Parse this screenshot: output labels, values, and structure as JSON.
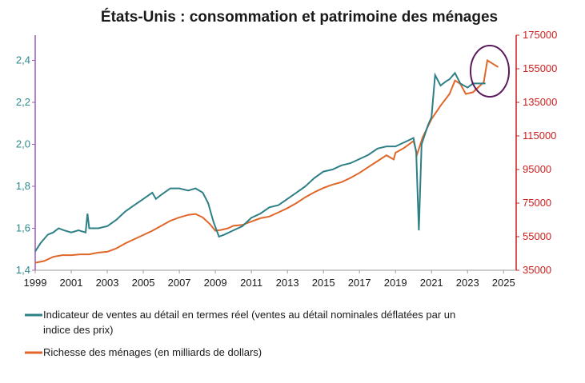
{
  "chart_data": {
    "type": "line",
    "title": "États-Unis : consommation et patrimoine des ménages",
    "x_ticks": [
      "1999",
      "2001",
      "2003",
      "2005",
      "2007",
      "2009",
      "2011",
      "2013",
      "2015",
      "2017",
      "2019",
      "2021",
      "2023",
      "2025"
    ],
    "xlim": [
      1999,
      2025.7
    ],
    "y_left": {
      "ticks": [
        "1,4",
        "1,6",
        "1,8",
        "2,0",
        "2,2",
        "2,4"
      ],
      "lim": [
        1.4,
        2.52
      ]
    },
    "y_right": {
      "ticks": [
        "35000",
        "55000",
        "75000",
        "95000",
        "115000",
        "135000",
        "155000",
        "175000"
      ],
      "lim": [
        35000,
        175000
      ]
    },
    "grid": false,
    "legend_position": "bottom",
    "colors": {
      "retail": "#2e7f86",
      "wealth": "#e0662a",
      "left_axis": "#9b59b6",
      "right_axis": "#cc1f1f",
      "circle": "#5b1b5e"
    },
    "series": [
      {
        "name": "Indicateur de ventes au détail en termes réel (ventes au détail nominales déflatées par un indice des prix)",
        "axis": "left",
        "points": [
          [
            1999.0,
            1.49
          ],
          [
            1999.3,
            1.53
          ],
          [
            1999.7,
            1.57
          ],
          [
            2000.0,
            1.58
          ],
          [
            2000.3,
            1.6
          ],
          [
            2000.6,
            1.59
          ],
          [
            2001.0,
            1.58
          ],
          [
            2001.4,
            1.59
          ],
          [
            2001.8,
            1.58
          ],
          [
            2001.9,
            1.67
          ],
          [
            2002.0,
            1.6
          ],
          [
            2002.5,
            1.6
          ],
          [
            2003.0,
            1.61
          ],
          [
            2003.5,
            1.64
          ],
          [
            2004.0,
            1.68
          ],
          [
            2004.5,
            1.71
          ],
          [
            2005.0,
            1.74
          ],
          [
            2005.5,
            1.77
          ],
          [
            2005.7,
            1.74
          ],
          [
            2006.0,
            1.76
          ],
          [
            2006.5,
            1.79
          ],
          [
            2007.0,
            1.79
          ],
          [
            2007.5,
            1.78
          ],
          [
            2007.9,
            1.79
          ],
          [
            2008.3,
            1.77
          ],
          [
            2008.6,
            1.72
          ],
          [
            2008.9,
            1.63
          ],
          [
            2009.2,
            1.56
          ],
          [
            2009.5,
            1.57
          ],
          [
            2010.0,
            1.59
          ],
          [
            2010.5,
            1.61
          ],
          [
            2011.0,
            1.65
          ],
          [
            2011.5,
            1.67
          ],
          [
            2012.0,
            1.7
          ],
          [
            2012.5,
            1.71
          ],
          [
            2013.0,
            1.74
          ],
          [
            2013.5,
            1.77
          ],
          [
            2014.0,
            1.8
          ],
          [
            2014.5,
            1.84
          ],
          [
            2015.0,
            1.87
          ],
          [
            2015.5,
            1.88
          ],
          [
            2016.0,
            1.9
          ],
          [
            2016.5,
            1.91
          ],
          [
            2017.0,
            1.93
          ],
          [
            2017.5,
            1.95
          ],
          [
            2018.0,
            1.98
          ],
          [
            2018.5,
            1.99
          ],
          [
            2019.0,
            1.99
          ],
          [
            2019.5,
            2.01
          ],
          [
            2020.0,
            2.03
          ],
          [
            2020.15,
            1.96
          ],
          [
            2020.3,
            1.59
          ],
          [
            2020.45,
            2.0
          ],
          [
            2020.8,
            2.09
          ],
          [
            2021.0,
            2.13
          ],
          [
            2021.2,
            2.33
          ],
          [
            2021.5,
            2.28
          ],
          [
            2021.8,
            2.3
          ],
          [
            2022.0,
            2.31
          ],
          [
            2022.3,
            2.34
          ],
          [
            2022.6,
            2.29
          ],
          [
            2023.0,
            2.27
          ],
          [
            2023.3,
            2.29
          ],
          [
            2023.7,
            2.29
          ],
          [
            2024.0,
            2.29
          ]
        ]
      },
      {
        "name": "Richesse des ménages (en milliards de dollars)",
        "axis": "right",
        "points": [
          [
            1999.0,
            39500
          ],
          [
            1999.5,
            40500
          ],
          [
            2000.0,
            43000
          ],
          [
            2000.5,
            44000
          ],
          [
            2001.0,
            44000
          ],
          [
            2001.5,
            44500
          ],
          [
            2002.0,
            44500
          ],
          [
            2002.5,
            45500
          ],
          [
            2003.0,
            46000
          ],
          [
            2003.5,
            48000
          ],
          [
            2004.0,
            51000
          ],
          [
            2004.5,
            53500
          ],
          [
            2005.0,
            56000
          ],
          [
            2005.5,
            58500
          ],
          [
            2006.0,
            61500
          ],
          [
            2006.5,
            64500
          ],
          [
            2007.0,
            66500
          ],
          [
            2007.5,
            68000
          ],
          [
            2007.9,
            68500
          ],
          [
            2008.3,
            66500
          ],
          [
            2008.7,
            62500
          ],
          [
            2009.0,
            58500
          ],
          [
            2009.3,
            59000
          ],
          [
            2009.7,
            60000
          ],
          [
            2010.0,
            61500
          ],
          [
            2010.5,
            62000
          ],
          [
            2011.0,
            64000
          ],
          [
            2011.5,
            66000
          ],
          [
            2012.0,
            67000
          ],
          [
            2012.5,
            69500
          ],
          [
            2013.0,
            72000
          ],
          [
            2013.5,
            75000
          ],
          [
            2014.0,
            78500
          ],
          [
            2014.5,
            81500
          ],
          [
            2015.0,
            84000
          ],
          [
            2015.5,
            86000
          ],
          [
            2016.0,
            87500
          ],
          [
            2016.5,
            90000
          ],
          [
            2017.0,
            93000
          ],
          [
            2017.5,
            96500
          ],
          [
            2018.0,
            100000
          ],
          [
            2018.5,
            103500
          ],
          [
            2018.9,
            101000
          ],
          [
            2019.0,
            105000
          ],
          [
            2019.5,
            108000
          ],
          [
            2020.0,
            112000
          ],
          [
            2020.2,
            104000
          ],
          [
            2020.5,
            114000
          ],
          [
            2021.0,
            125000
          ],
          [
            2021.5,
            133000
          ],
          [
            2022.0,
            140000
          ],
          [
            2022.3,
            148000
          ],
          [
            2022.6,
            146000
          ],
          [
            2022.9,
            140000
          ],
          [
            2023.3,
            141000
          ],
          [
            2023.6,
            144000
          ],
          [
            2023.9,
            147000
          ],
          [
            2024.1,
            160000
          ],
          [
            2024.4,
            158000
          ],
          [
            2024.7,
            156000
          ]
        ]
      }
    ],
    "annotation": "ellipse highlighting latest wealth values"
  }
}
